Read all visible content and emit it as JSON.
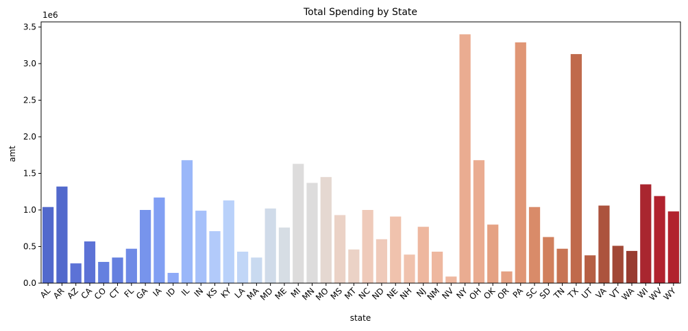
{
  "chart_data": {
    "type": "bar",
    "title": "Total Spending by State",
    "xlabel": "state",
    "ylabel": "amt",
    "y_scale_label": "1e6",
    "ylim": [
      0,
      3.57
    ],
    "yticks": [
      0.0,
      0.5,
      1.0,
      1.5,
      2.0,
      2.5,
      3.0,
      3.5
    ],
    "ytick_labels": [
      "0.0",
      "0.5",
      "1.0",
      "1.5",
      "2.0",
      "2.5",
      "3.0",
      "3.5"
    ],
    "grid": false,
    "palette": "coolwarm",
    "categories": [
      "AL",
      "AR",
      "AZ",
      "CA",
      "CO",
      "CT",
      "FL",
      "GA",
      "IA",
      "ID",
      "IL",
      "IN",
      "KS",
      "KY",
      "LA",
      "MA",
      "MD",
      "ME",
      "MI",
      "MN",
      "MO",
      "MS",
      "MT",
      "NC",
      "ND",
      "NE",
      "NH",
      "NJ",
      "NM",
      "NV",
      "NY",
      "OH",
      "OK",
      "OR",
      "PA",
      "SC",
      "SD",
      "TN",
      "TX",
      "UT",
      "VA",
      "VT",
      "WA",
      "WI",
      "WV",
      "WY"
    ],
    "values": [
      1.04,
      1.32,
      0.27,
      0.57,
      0.29,
      0.35,
      0.47,
      1.0,
      1.17,
      0.14,
      1.68,
      0.99,
      0.71,
      1.13,
      0.43,
      0.35,
      1.02,
      0.76,
      1.63,
      1.37,
      1.45,
      0.93,
      0.46,
      1.0,
      0.6,
      0.91,
      0.39,
      0.77,
      0.43,
      0.09,
      3.4,
      1.68,
      0.8,
      0.16,
      3.29,
      1.04,
      0.63,
      0.47,
      3.13,
      0.38,
      1.06,
      0.51,
      0.44,
      1.35,
      1.19,
      0.98
    ],
    "colors": [
      "#5269cc",
      "#5c72d6",
      "#6580df",
      "#6f8ae6",
      "#7794ec",
      "#819ff3",
      "#8da9f7",
      "#9ab7f9",
      "#a6c0fa",
      "#b2cafa",
      "#b9d1fa",
      "#c1d6f7",
      "#c9daf0",
      "#d0dbe9",
      "#d6dde4",
      "#dddcdc",
      "#e5d8d1",
      "#ebd2c6",
      "#efcaba",
      "#f0c2ad",
      "#eeb79f",
      "#eaac91",
      "#e5a183",
      "#e09675",
      "#d98b69",
      "#d1805d",
      "#c87454",
      "#c06a4c",
      "#b65f44",
      "#ac533d",
      "#a24836",
      "#983c31",
      "#a9262f",
      "#b1222e"
    ],
    "color_indices": [
      0,
      0,
      1,
      1,
      2,
      2,
      3,
      4,
      5,
      6,
      7,
      8,
      9,
      10,
      11,
      12,
      13,
      14,
      15,
      15,
      16,
      17,
      17,
      18,
      18,
      19,
      19,
      20,
      20,
      20,
      21,
      21,
      22,
      22,
      23,
      24,
      25,
      26,
      27,
      28,
      29,
      30,
      31,
      32,
      33,
      33
    ]
  }
}
